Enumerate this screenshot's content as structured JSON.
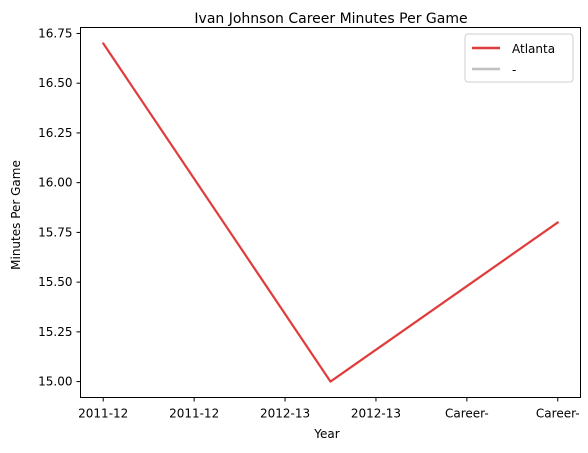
{
  "chart_data": {
    "type": "line",
    "title": "Ivan Johnson  Career Minutes Per Game",
    "xlabel": "Year",
    "ylabel": "Minutes Per Game",
    "x_tick_labels": [
      "2011-12",
      "2011-12",
      "2012-13",
      "2012-13",
      "Career-",
      "Career-"
    ],
    "y_tick_labels": [
      "15.00",
      "15.25",
      "15.50",
      "15.75",
      "16.00",
      "16.25",
      "16.50",
      "16.75"
    ],
    "ylim": [
      14.92,
      16.78
    ],
    "xlim": [
      -0.1,
      2.1
    ],
    "series": [
      {
        "name": "Atlanta",
        "color": "#e03c3c",
        "x": [
          0,
          1,
          2
        ],
        "y": [
          16.7,
          15.0,
          15.8
        ]
      },
      {
        "name": "-",
        "color": "#c0c0c0",
        "x": [],
        "y": []
      }
    ],
    "grid": false,
    "legend_position": "top-right"
  }
}
